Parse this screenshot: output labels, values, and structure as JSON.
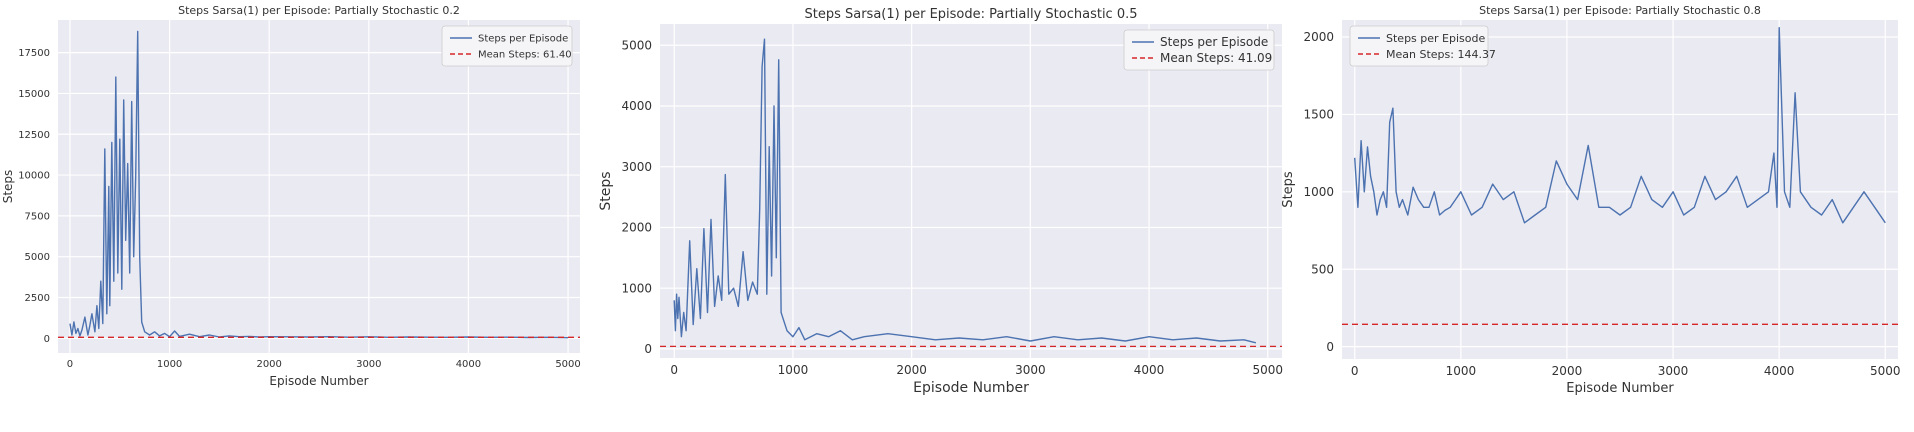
{
  "chart_data": [
    {
      "type": "line",
      "title": "Steps Sarsa(1) per Episode: Partially Stochastic 0.2",
      "xlabel": "Episode Number",
      "ylabel": "Steps",
      "xlim": [
        -120,
        5120
      ],
      "ylim": [
        -900,
        19500
      ],
      "xticks": [
        0,
        1000,
        2000,
        3000,
        4000,
        5000
      ],
      "xtick_labels": [
        "0",
        "1000",
        "2000",
        "3000",
        "4000",
        "5000"
      ],
      "yticks": [
        0,
        2500,
        5000,
        7500,
        10000,
        12500,
        15000,
        17500
      ],
      "ytick_labels": [
        "0",
        "2500",
        "5000",
        "7500",
        "10000",
        "12500",
        "15000",
        "17500"
      ],
      "grid": true,
      "legend_position": "top-right",
      "series": [
        {
          "name": "Steps per Episode",
          "color": "#4c72b0",
          "x": [
            0,
            20,
            40,
            60,
            80,
            100,
            120,
            150,
            180,
            200,
            220,
            250,
            270,
            290,
            310,
            330,
            350,
            370,
            390,
            400,
            420,
            440,
            460,
            480,
            500,
            520,
            540,
            560,
            580,
            600,
            620,
            640,
            660,
            680,
            700,
            720,
            750,
            800,
            850,
            900,
            950,
            1000,
            1050,
            1100,
            1200,
            1300,
            1400,
            1500,
            1600,
            1700,
            1800,
            1900,
            2000,
            2200,
            2400,
            2600,
            2800,
            3000,
            3200,
            3400,
            3600,
            3800,
            4000,
            4200,
            4400,
            4600,
            4800,
            5000
          ],
          "y": [
            900,
            200,
            1000,
            300,
            600,
            150,
            500,
            1300,
            200,
            800,
            1500,
            400,
            2000,
            600,
            3500,
            900,
            11600,
            1500,
            9300,
            2000,
            12000,
            3500,
            16000,
            4000,
            12200,
            3000,
            14600,
            6000,
            10700,
            4000,
            14500,
            5000,
            9900,
            18800,
            5000,
            1000,
            400,
            200,
            400,
            150,
            300,
            100,
            450,
            120,
            250,
            100,
            200,
            80,
            150,
            100,
            120,
            80,
            100,
            90,
            80,
            100,
            70,
            90,
            60,
            80,
            70,
            60,
            80,
            60,
            70,
            50,
            60,
            40
          ]
        },
        {
          "name": "Mean Steps: 61.40",
          "color": "#d62728",
          "style": "dashed",
          "x": [
            -120,
            5120
          ],
          "y": [
            61.4,
            61.4
          ]
        }
      ]
    },
    {
      "type": "line",
      "title": "Steps Sarsa(1) per Episode: Partially Stochastic 0.5",
      "xlabel": "Episode Number",
      "ylabel": "Steps",
      "xlim": [
        -120,
        5120
      ],
      "ylim": [
        -150,
        5350
      ],
      "xticks": [
        0,
        1000,
        2000,
        3000,
        4000,
        5000
      ],
      "xtick_labels": [
        "0",
        "1000",
        "2000",
        "3000",
        "4000",
        "5000"
      ],
      "yticks": [
        0,
        1000,
        2000,
        3000,
        4000,
        5000
      ],
      "ytick_labels": [
        "0",
        "1000",
        "2000",
        "3000",
        "4000",
        "5000"
      ],
      "grid": true,
      "legend_position": "top-right",
      "series": [
        {
          "name": "Steps per Episode",
          "color": "#4c72b0",
          "x": [
            0,
            10,
            20,
            30,
            40,
            60,
            80,
            100,
            130,
            160,
            190,
            220,
            250,
            280,
            310,
            340,
            370,
            400,
            430,
            460,
            500,
            540,
            580,
            620,
            660,
            700,
            720,
            740,
            760,
            780,
            800,
            820,
            840,
            860,
            880,
            900,
            950,
            1000,
            1050,
            1100,
            1200,
            1300,
            1400,
            1500,
            1600,
            1800,
            2000,
            2200,
            2400,
            2600,
            2800,
            3000,
            3200,
            3400,
            3600,
            3800,
            4000,
            4200,
            4400,
            4600,
            4800,
            4900
          ],
          "y": [
            800,
            300,
            900,
            500,
            850,
            200,
            600,
            300,
            1780,
            400,
            1320,
            500,
            1980,
            600,
            2130,
            700,
            1200,
            800,
            2870,
            900,
            1000,
            700,
            1600,
            800,
            1100,
            900,
            2300,
            4650,
            5100,
            900,
            3330,
            1200,
            4000,
            1500,
            4760,
            600,
            300,
            200,
            350,
            150,
            250,
            200,
            300,
            150,
            200,
            250,
            200,
            150,
            180,
            150,
            200,
            130,
            200,
            150,
            180,
            130,
            200,
            150,
            180,
            130,
            150,
            100
          ]
        },
        {
          "name": "Mean Steps: 41.09",
          "color": "#d62728",
          "style": "dashed",
          "x": [
            -120,
            5120
          ],
          "y": [
            41.09,
            41.09
          ]
        }
      ]
    },
    {
      "type": "line",
      "title": "Steps Sarsa(1) per Episode: Partially Stochastic 0.8",
      "xlabel": "Episode Number",
      "ylabel": "Steps",
      "xlim": [
        -120,
        5120
      ],
      "ylim": [
        -80,
        2110
      ],
      "xticks": [
        0,
        1000,
        2000,
        3000,
        4000,
        5000
      ],
      "xtick_labels": [
        "0",
        "1000",
        "2000",
        "3000",
        "4000",
        "5000"
      ],
      "yticks": [
        0,
        500,
        1000,
        1500,
        2000
      ],
      "ytick_labels": [
        "0",
        "500",
        "1000",
        "1500",
        "2000"
      ],
      "grid": true,
      "legend_position": "top-left",
      "series": [
        {
          "name": "Steps per Episode",
          "color": "#4c72b0",
          "x": [
            0,
            30,
            60,
            90,
            120,
            150,
            180,
            210,
            240,
            270,
            300,
            330,
            360,
            390,
            420,
            450,
            500,
            550,
            600,
            650,
            700,
            750,
            800,
            850,
            900,
            950,
            1000,
            1100,
            1200,
            1300,
            1400,
            1500,
            1600,
            1700,
            1800,
            1900,
            2000,
            2100,
            2200,
            2300,
            2400,
            2500,
            2600,
            2700,
            2800,
            2900,
            3000,
            3100,
            3200,
            3300,
            3400,
            3500,
            3600,
            3700,
            3800,
            3900,
            3950,
            3980,
            4000,
            4050,
            4100,
            4150,
            4200,
            4300,
            4400,
            4500,
            4600,
            4700,
            4800,
            4900,
            5000
          ],
          "y": [
            1220,
            900,
            1330,
            1000,
            1290,
            1100,
            1000,
            850,
            950,
            1000,
            900,
            1450,
            1540,
            1000,
            900,
            950,
            850,
            1030,
            950,
            900,
            900,
            1000,
            850,
            880,
            900,
            950,
            1000,
            850,
            900,
            1050,
            950,
            1000,
            800,
            850,
            900,
            1200,
            1050,
            950,
            1300,
            900,
            900,
            850,
            900,
            1100,
            950,
            900,
            1000,
            850,
            900,
            1100,
            950,
            1000,
            1100,
            900,
            950,
            1000,
            1250,
            900,
            2060,
            1000,
            900,
            1640,
            1000,
            900,
            850,
            950,
            800,
            900,
            1000,
            900,
            800
          ]
        },
        {
          "name": "Mean Steps: 144.37",
          "color": "#d62728",
          "style": "dashed",
          "x": [
            -120,
            5120
          ],
          "y": [
            144.37,
            144.37
          ]
        }
      ]
    }
  ]
}
